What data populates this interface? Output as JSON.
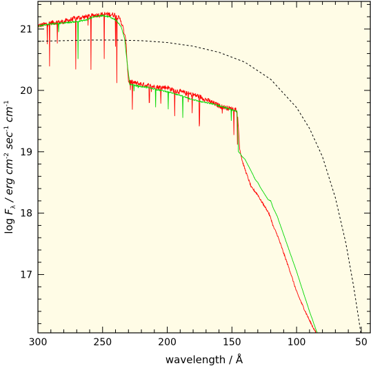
{
  "chart_data": {
    "type": "line",
    "title": "",
    "xlabel": "wavelength / Å",
    "ylabel_parts": {
      "prefix": "log ",
      "F": "F",
      "lambda": "λ",
      "unit1": " / erg cm",
      "exp1": "-2",
      "unit2": " sec",
      "exp2": "-1",
      "unit3": " cm",
      "exp3": "-1"
    },
    "xlim": [
      300,
      43
    ],
    "ylim": [
      16.05,
      21.45
    ],
    "x_reversed": true,
    "x_ticks": [
      300,
      250,
      200,
      150,
      100,
      50
    ],
    "y_ticks": [
      17,
      18,
      19,
      20,
      21
    ],
    "background_color": "#fffce6",
    "grid": false,
    "series": [
      {
        "color": "#ff0000",
        "style": "solid",
        "x": [
          300,
          290,
          280,
          270,
          262,
          257,
          250,
          245,
          240,
          236,
          234,
          232,
          230,
          225,
          220,
          215,
          210,
          205,
          200,
          195,
          190,
          185,
          180,
          175,
          170,
          165,
          160,
          155,
          150,
          148,
          146,
          145,
          144,
          142,
          140,
          138,
          135,
          132,
          130,
          128,
          125,
          122,
          120,
          118,
          115,
          110,
          105,
          100,
          95,
          90,
          85,
          80
        ],
        "y": [
          21.05,
          21.1,
          21.12,
          21.18,
          21.2,
          21.22,
          21.24,
          21.24,
          21.23,
          21.15,
          21.0,
          20.8,
          20.15,
          20.12,
          20.1,
          20.08,
          20.06,
          20.05,
          20.05,
          20.0,
          19.98,
          19.95,
          19.93,
          19.9,
          19.85,
          19.8,
          19.75,
          19.72,
          19.7,
          19.7,
          19.68,
          19.4,
          19.05,
          18.85,
          18.72,
          18.6,
          18.42,
          18.35,
          18.3,
          18.22,
          18.12,
          18.02,
          17.92,
          17.78,
          17.65,
          17.35,
          17.05,
          16.72,
          16.48,
          16.25,
          16.05,
          15.85
        ],
        "noise_amplitude": 0.08,
        "notes": "absorption-line forest between 300 and 145 Å"
      },
      {
        "color": "#00d800",
        "style": "solid",
        "x": [
          300,
          290,
          280,
          270,
          262,
          257,
          250,
          245,
          240,
          236,
          233,
          231,
          229,
          225,
          220,
          215,
          210,
          205,
          200,
          195,
          190,
          185,
          180,
          175,
          170,
          165,
          160,
          155,
          150,
          146,
          145,
          144,
          142,
          140,
          138,
          135,
          132,
          130,
          128,
          125,
          122,
          120,
          118,
          115,
          110,
          105,
          100,
          95,
          90,
          85,
          80
        ],
        "y": [
          21.05,
          21.08,
          21.1,
          21.12,
          21.15,
          21.2,
          21.22,
          21.2,
          21.15,
          21.05,
          20.85,
          20.45,
          20.1,
          20.08,
          20.06,
          20.05,
          20.02,
          20.0,
          19.98,
          19.95,
          19.92,
          19.88,
          19.85,
          19.82,
          19.8,
          19.78,
          19.75,
          19.72,
          19.68,
          19.66,
          19.0,
          18.98,
          18.92,
          18.88,
          18.8,
          18.68,
          18.55,
          18.5,
          18.42,
          18.32,
          18.22,
          18.2,
          18.08,
          17.95,
          17.65,
          17.35,
          17.05,
          16.72,
          16.4,
          16.1,
          15.85
        ],
        "noise_amplitude": 0.02
      },
      {
        "color": "#000000",
        "style": "dashed",
        "x": [
          300,
          280,
          260,
          240,
          220,
          200,
          180,
          160,
          140,
          120,
          100,
          90,
          80,
          70,
          62,
          56,
          52,
          49
        ],
        "y": [
          20.8,
          20.81,
          20.82,
          20.82,
          20.81,
          20.78,
          20.72,
          20.62,
          20.46,
          20.18,
          19.72,
          19.38,
          18.92,
          18.25,
          17.52,
          16.82,
          16.28,
          15.85
        ]
      }
    ]
  }
}
